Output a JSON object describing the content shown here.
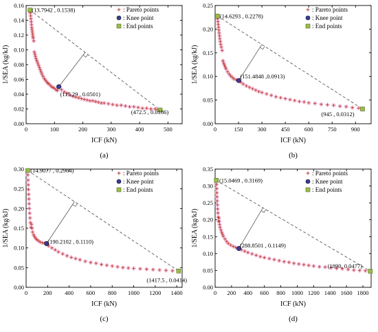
{
  "colors": {
    "pareto": "#c0392b",
    "pareto_glow": "#f3c6e6",
    "knee": "#3b3b9e",
    "end": "#9bbd45",
    "dash": "#444444",
    "perp": "#555555"
  },
  "chart_data": [
    {
      "type": "scatter",
      "caption": "(a)",
      "xlabel": "ICF (kN)",
      "ylabel": "1/SEA (kg/kJ)",
      "xlim": [
        0,
        550
      ],
      "ylim": [
        0,
        0.16
      ],
      "xticks": [
        0,
        100,
        200,
        300,
        400,
        500
      ],
      "yticks": [
        0.0,
        0.02,
        0.04,
        0.06,
        0.08,
        0.1,
        0.12,
        0.14,
        0.16
      ],
      "ytick_labels": [
        "0.00",
        "0.02",
        "0.04",
        "0.06",
        "0.08",
        "0.10",
        "0.12",
        "0.14",
        "0.16"
      ],
      "xtick_labels": [
        "0",
        "100",
        "200",
        "300",
        "400",
        "500"
      ],
      "series": [
        {
          "role": "pareto",
          "x": [
            13.8,
            15,
            16,
            17,
            18,
            19,
            20,
            21,
            22,
            23,
            24,
            25,
            27,
            29,
            31,
            33,
            35,
            38,
            41,
            44,
            47,
            50,
            53,
            56,
            60,
            64,
            68,
            72,
            76,
            80,
            85,
            90,
            95,
            100,
            105,
            110,
            118,
            125,
            135,
            145,
            155,
            165,
            175,
            185,
            195,
            205,
            215,
            225,
            235,
            245,
            255,
            265,
            275,
            290,
            305,
            320,
            335,
            350,
            365,
            380,
            395,
            410,
            425,
            440,
            455,
            465,
            472.5
          ],
          "y": [
            0.1538,
            0.15,
            0.146,
            0.142,
            0.138,
            0.134,
            0.13,
            0.127,
            0.124,
            0.121,
            0.118,
            0.116,
            0.112,
            0.097,
            0.094,
            0.091,
            0.088,
            0.085,
            0.082,
            0.079,
            0.076,
            0.073,
            0.07,
            0.067,
            0.064,
            0.061,
            0.059,
            0.057,
            0.055,
            0.054,
            0.052,
            0.05,
            0.049,
            0.048,
            0.046,
            0.045,
            0.0501,
            0.046,
            0.043,
            0.041,
            0.039,
            0.037,
            0.036,
            0.035,
            0.034,
            0.033,
            0.032,
            0.031,
            0.031,
            0.03,
            0.029,
            0.028,
            0.028,
            0.027,
            0.026,
            0.025,
            0.025,
            0.024,
            0.023,
            0.023,
            0.022,
            0.021,
            0.021,
            0.02,
            0.02,
            0.019,
            0.0186
          ]
        },
        {
          "role": "knee",
          "x": [
            115.29
          ],
          "y": [
            0.0501
          ]
        },
        {
          "role": "end",
          "x": [
            13.7942,
            472.5
          ],
          "y": [
            0.1538,
            0.0186
          ]
        }
      ],
      "annotations": [
        {
          "text": "(13.7942 , 0.1538)",
          "x": 20,
          "y": 0.1538
        },
        {
          "text": "(115.29 , 0.0501)",
          "x": 120,
          "y": 0.04
        },
        {
          "text": "(472.5 , 0.0186)",
          "x": 370,
          "y": 0.016
        }
      ],
      "legend": {
        "location": "top-right",
        "entries": [
          ": Pareto points",
          ": Knee point",
          ": End points"
        ]
      }
    },
    {
      "type": "scatter",
      "caption": "(b)",
      "xlabel": "ICF (kN)",
      "ylabel": "1/SEA (kg/kJ)",
      "xlim": [
        0,
        1000
      ],
      "ylim": [
        0,
        0.25
      ],
      "xticks": [
        0,
        150,
        300,
        450,
        600,
        750,
        900
      ],
      "yticks": [
        0.0,
        0.05,
        0.1,
        0.15,
        0.2,
        0.25
      ],
      "ytick_labels": [
        "0.00",
        "0.05",
        "0.10",
        "0.15",
        "0.20",
        "0.25"
      ],
      "xtick_labels": [
        "0",
        "150",
        "300",
        "450",
        "600",
        "750",
        "900"
      ],
      "series": [
        {
          "role": "pareto",
          "x": [
            14.6,
            16,
            18,
            20,
            22,
            24,
            26,
            28,
            30,
            33,
            36,
            40,
            45,
            50,
            55,
            60,
            65,
            70,
            80,
            90,
            100,
            110,
            120,
            135,
            151.5,
            165,
            180,
            200,
            220,
            240,
            260,
            280,
            300,
            330,
            360,
            390,
            420,
            450,
            480,
            510,
            540,
            570,
            600,
            640,
            680,
            720,
            760,
            800,
            840,
            880,
            920,
            945
          ],
          "y": [
            0.2278,
            0.222,
            0.216,
            0.21,
            0.204,
            0.198,
            0.192,
            0.186,
            0.18,
            0.174,
            0.168,
            0.162,
            0.155,
            0.133,
            0.128,
            0.124,
            0.12,
            0.116,
            0.11,
            0.105,
            0.101,
            0.098,
            0.095,
            0.093,
            0.0913,
            0.088,
            0.084,
            0.08,
            0.077,
            0.074,
            0.071,
            0.068,
            0.066,
            0.063,
            0.06,
            0.057,
            0.055,
            0.053,
            0.051,
            0.049,
            0.047,
            0.046,
            0.044,
            0.043,
            0.041,
            0.04,
            0.039,
            0.037,
            0.036,
            0.034,
            0.033,
            0.0312
          ]
        },
        {
          "role": "knee",
          "x": [
            151.4848
          ],
          "y": [
            0.0913
          ]
        },
        {
          "role": "end",
          "x": [
            14.6293,
            945
          ],
          "y": [
            0.2278,
            0.0312
          ]
        }
      ],
      "annotations": [
        {
          "text": "(14.6293 , 0.2278)",
          "x": 30,
          "y": 0.2278
        },
        {
          "text": "(151.4848 ,0.0913)",
          "x": 160,
          "y": 0.1
        },
        {
          "text": "(945 , 0.0312)",
          "x": 680,
          "y": 0.02
        }
      ],
      "legend": {
        "location": "top-right",
        "entries": [
          ": Pareto points",
          ": Knee point",
          ": End points"
        ]
      }
    },
    {
      "type": "scatter",
      "caption": "(c)",
      "xlabel": "ICF (kN)",
      "ylabel": "1/SEA (kg/kJ)",
      "xlim": [
        0,
        1450
      ],
      "ylim": [
        0,
        0.3
      ],
      "xticks": [
        0,
        200,
        400,
        600,
        800,
        1000,
        1200,
        1400
      ],
      "yticks": [
        0.0,
        0.05,
        0.1,
        0.15,
        0.2,
        0.25,
        0.3
      ],
      "ytick_labels": [
        "0.00",
        "0.05",
        "0.10",
        "0.15",
        "0.20",
        "0.25",
        "0.30"
      ],
      "xtick_labels": [
        "0",
        "200",
        "400",
        "600",
        "800",
        "1000",
        "1200",
        "1400"
      ],
      "series": [
        {
          "role": "pareto",
          "x": [
            14.9,
            16,
            18,
            20,
            22,
            24,
            26,
            28,
            30,
            33,
            36,
            40,
            45,
            50,
            55,
            60,
            70,
            80,
            90,
            100,
            115,
            130,
            150,
            170,
            190.2,
            210,
            240,
            270,
            300,
            340,
            380,
            420,
            460,
            500,
            550,
            600,
            650,
            700,
            750,
            800,
            850,
            900,
            950,
            1000,
            1060,
            1120,
            1180,
            1240,
            1300,
            1360,
            1417.5
          ],
          "y": [
            0.2964,
            0.285,
            0.272,
            0.26,
            0.248,
            0.236,
            0.224,
            0.212,
            0.2,
            0.188,
            0.176,
            0.164,
            0.152,
            0.16,
            0.15,
            0.14,
            0.133,
            0.128,
            0.124,
            0.121,
            0.118,
            0.115,
            0.113,
            0.112,
            0.111,
            0.105,
            0.1,
            0.095,
            0.09,
            0.085,
            0.08,
            0.076,
            0.073,
            0.07,
            0.066,
            0.063,
            0.061,
            0.058,
            0.056,
            0.054,
            0.052,
            0.05,
            0.049,
            0.048,
            0.047,
            0.046,
            0.045,
            0.044,
            0.043,
            0.042,
            0.0414
          ]
        },
        {
          "role": "knee",
          "x": [
            190.2102
          ],
          "y": [
            0.111
          ]
        },
        {
          "role": "end",
          "x": [
            14.9077,
            1417.5
          ],
          "y": [
            0.2964,
            0.0414
          ]
        }
      ],
      "annotations": [
        {
          "text": "(14.9077 , 0.2964)",
          "x": 40,
          "y": 0.2964
        },
        {
          "text": "(190.2102 , 0.1110)",
          "x": 200,
          "y": 0.116
        },
        {
          "text": "(1417.5 , 0.0414)",
          "x": 1120,
          "y": 0.018
        }
      ],
      "legend": {
        "location": "top-right",
        "entries": [
          ": Pareto points",
          ": Knee point",
          ": End points"
        ]
      }
    },
    {
      "type": "scatter",
      "caption": "(d)",
      "xlabel": "ICF (kN)",
      "ylabel": "1/SEA (kg/kJ)",
      "xlim": [
        0,
        1900
      ],
      "ylim": [
        0,
        0.35
      ],
      "xticks": [
        0,
        200,
        400,
        600,
        800,
        1000,
        1200,
        1400,
        1600,
        1800
      ],
      "yticks": [
        0.0,
        0.05,
        0.1,
        0.15,
        0.2,
        0.25,
        0.3,
        0.35
      ],
      "ytick_labels": [
        "0.00",
        "0.05",
        "0.10",
        "0.15",
        "0.20",
        "0.25",
        "0.30",
        "0.35"
      ],
      "xtick_labels": [
        "0",
        "200",
        "400",
        "600",
        "800",
        "1000",
        "1200",
        "1400",
        "1600",
        "1800"
      ],
      "series": [
        {
          "role": "pareto",
          "x": [
            15,
            17,
            19,
            21,
            23,
            25,
            28,
            31,
            34,
            38,
            42,
            46,
            50,
            55,
            60,
            70,
            80,
            90,
            100,
            120,
            140,
            160,
            190,
            220,
            250,
            288.9,
            320,
            360,
            400,
            450,
            500,
            550,
            600,
            660,
            720,
            780,
            840,
            900,
            960,
            1020,
            1080,
            1140,
            1200,
            1270,
            1340,
            1410,
            1480,
            1550,
            1620,
            1690,
            1760,
            1830,
            1890
          ],
          "y": [
            0.3169,
            0.305,
            0.292,
            0.28,
            0.268,
            0.256,
            0.244,
            0.232,
            0.22,
            0.208,
            0.196,
            0.205,
            0.195,
            0.186,
            0.178,
            0.17,
            0.163,
            0.157,
            0.151,
            0.143,
            0.136,
            0.13,
            0.125,
            0.121,
            0.118,
            0.1149,
            0.111,
            0.107,
            0.103,
            0.099,
            0.095,
            0.091,
            0.088,
            0.085,
            0.082,
            0.079,
            0.076,
            0.074,
            0.071,
            0.069,
            0.067,
            0.065,
            0.063,
            0.061,
            0.06,
            0.058,
            0.056,
            0.055,
            0.053,
            0.051,
            0.05,
            0.049,
            0.0477
          ]
        },
        {
          "role": "knee",
          "x": [
            288.8501
          ],
          "y": [
            0.1149
          ]
        },
        {
          "role": "end",
          "x": [
            15.0469,
            1890
          ],
          "y": [
            0.3169,
            0.0477
          ]
        }
      ],
      "annotations": [
        {
          "text": "(15.0469 , 0.3169)",
          "x": 50,
          "y": 0.3169
        },
        {
          "text": "(288.8501 , 0.1149)",
          "x": 300,
          "y": 0.124
        },
        {
          "text": "(1890, 0.0477)",
          "x": 1370,
          "y": 0.063
        }
      ],
      "legend": {
        "location": "top-right",
        "entries": [
          ": Pareto points",
          ": Knee point",
          ": End points"
        ]
      }
    }
  ]
}
